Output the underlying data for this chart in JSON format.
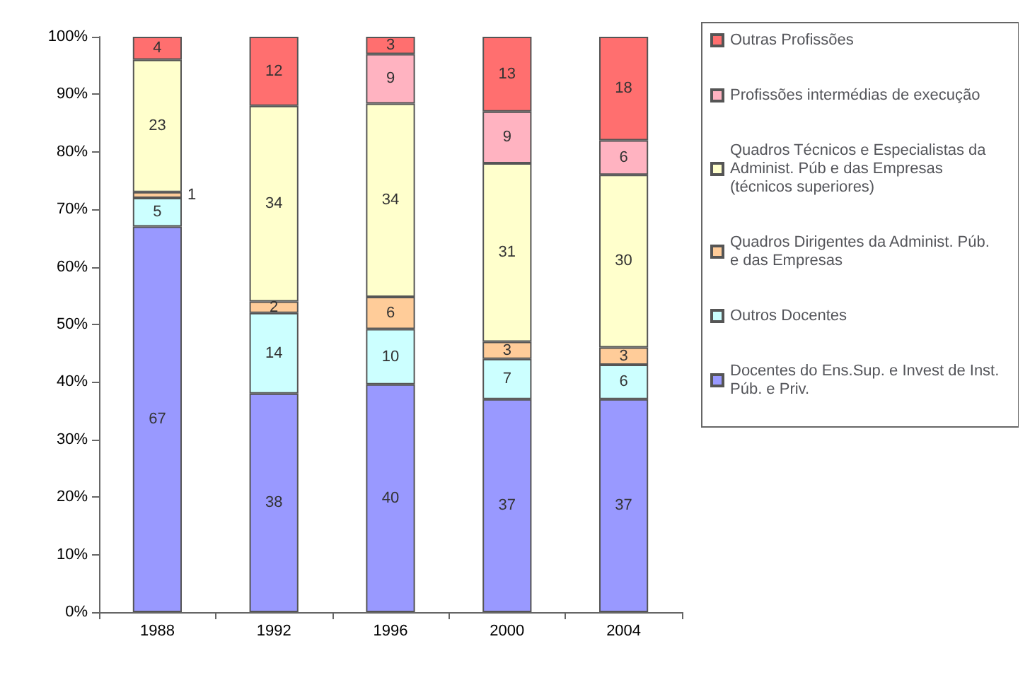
{
  "chart_data": {
    "type": "bar",
    "stacked": true,
    "categories": [
      "1988",
      "1992",
      "1996",
      "2000",
      "2004"
    ],
    "series": [
      {
        "name": "Docentes do Ens.Sup. e Invest de Inst. Púb. e Priv.",
        "color": "#9999ff",
        "values": [
          67,
          38,
          39.6,
          37,
          37
        ],
        "value_labels": [
          "67",
          "38",
          "40",
          "37",
          "37"
        ]
      },
      {
        "name": "Outros Docentes",
        "color": "#ccffff",
        "values": [
          5,
          14,
          9.6,
          7,
          6
        ],
        "value_labels": [
          "5",
          "14",
          "10",
          "7",
          "6"
        ]
      },
      {
        "name": "Quadros Dirigentes da Administ. Púb. e das Empresas",
        "color": "#ffcc99",
        "values": [
          1,
          2,
          5.6,
          3,
          3
        ],
        "value_labels": [
          "1",
          "2",
          "6",
          "3",
          "3"
        ]
      },
      {
        "name": "Quadros Técnicos e Especialistas da Administ. Púb e das Empresas (técnicos superiores)",
        "color": "#ffffcc",
        "values": [
          23,
          34,
          33.6,
          31,
          30
        ],
        "value_labels": [
          "23",
          "34",
          "34",
          "31",
          "30"
        ]
      },
      {
        "name": "Profissões intermédias de execução",
        "color": "#ffb3c1",
        "values": [
          null,
          null,
          8.6,
          9,
          6
        ],
        "value_labels": [
          null,
          null,
          "9",
          "9",
          "6"
        ]
      },
      {
        "name": "Outras Profissões",
        "color": "#ff6f6f",
        "values": [
          4,
          12,
          3,
          13,
          18
        ],
        "value_labels": [
          "4",
          "12",
          "3",
          "13",
          "18"
        ]
      }
    ],
    "ylim": [
      0,
      100
    ],
    "yticks": [
      {
        "value": 0,
        "label": "0%"
      },
      {
        "value": 10,
        "label": "10%"
      },
      {
        "value": 20,
        "label": "20%"
      },
      {
        "value": 30,
        "label": "30%"
      },
      {
        "value": 40,
        "label": "40%"
      },
      {
        "value": 50,
        "label": "50%"
      },
      {
        "value": 60,
        "label": "60%"
      },
      {
        "value": 70,
        "label": "70%"
      },
      {
        "value": 80,
        "label": "80%"
      },
      {
        "value": 90,
        "label": "90%"
      },
      {
        "value": 100,
        "label": "100%"
      }
    ],
    "grid": false,
    "legend": "right"
  }
}
